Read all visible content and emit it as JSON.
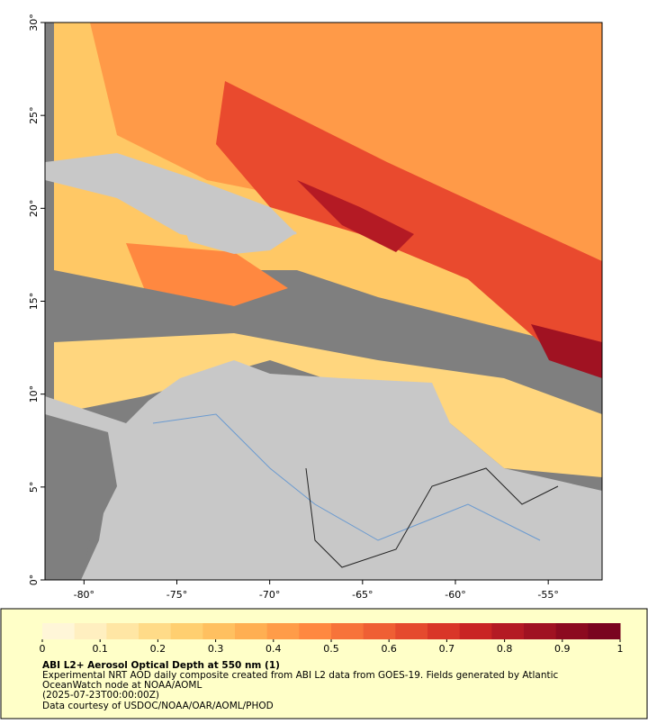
{
  "map": {
    "xlim": [
      -82.1,
      -52.1
    ],
    "ylim": [
      0,
      30
    ],
    "xticks": [
      {
        "value": -80,
        "label": "-80°"
      },
      {
        "value": -75,
        "label": "-75°"
      },
      {
        "value": -70,
        "label": "-70°"
      },
      {
        "value": -65,
        "label": "-65°"
      },
      {
        "value": -60,
        "label": "-60°"
      },
      {
        "value": -55,
        "label": "-55°"
      }
    ],
    "yticks": [
      {
        "value": 0,
        "label": "0°"
      },
      {
        "value": 5,
        "label": "5°"
      },
      {
        "value": 10,
        "label": "10°"
      },
      {
        "value": 15,
        "label": "15°"
      },
      {
        "value": 20,
        "label": "20°"
      },
      {
        "value": 25,
        "label": "25°"
      },
      {
        "value": 30,
        "label": "30°"
      }
    ]
  },
  "colorbar": {
    "lim": [
      0,
      1
    ],
    "ticks": [
      0,
      0.1,
      0.2,
      0.3,
      0.4,
      0.5,
      0.6,
      0.7,
      0.8,
      0.9,
      1
    ],
    "colors": [
      "#fff6d8",
      "#ffefc0",
      "#ffe6a4",
      "#ffdb88",
      "#ffcf70",
      "#ffc060",
      "#ffaf52",
      "#ff9c48",
      "#ff8840",
      "#f7733a",
      "#ef5f34",
      "#e54a2e",
      "#d93628",
      "#c92424",
      "#b41a24",
      "#a01222",
      "#8c0a20",
      "#7a0420"
    ]
  },
  "caption": {
    "title": "ABI L2+ Aerosol Optical Depth at 550 nm (1)",
    "lines": [
      "Experimental NRT AOD daily composite created from ABI L2 data from GOES-19. Fields generated by Atlantic",
      "OceanWatch node at NOAA/AOML",
      "(2025-07-23T00:00:00Z)",
      "Data courtesy of USDOC/NOAA/OAR/AOML/PHOD"
    ]
  }
}
